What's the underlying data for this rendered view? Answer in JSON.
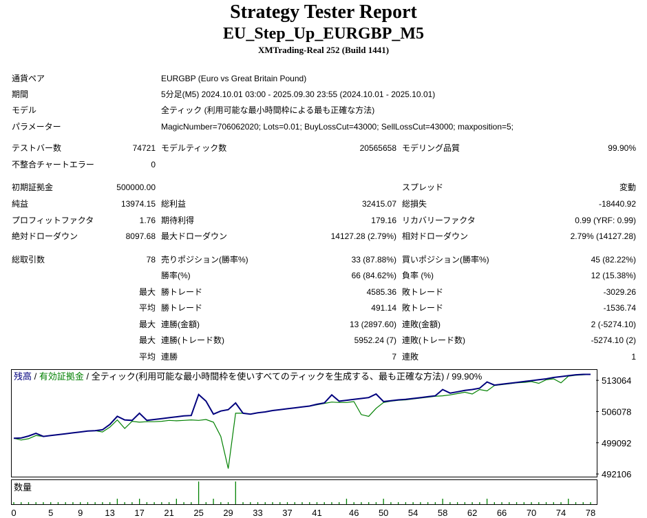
{
  "report": {
    "title": "Strategy Tester Report",
    "subtitle": "EU_Step_Up_EURGBP_M5",
    "build": "XMTrading-Real 252 (Build 1441)"
  },
  "settings": [
    {
      "label": "通貨ペア",
      "value": "EURGBP (Euro vs Great Britain Pound)"
    },
    {
      "label": "期間",
      "value": "5分足(M5) 2024.10.01 03:00 - 2025.09.30 23:55 (2024.10.01 - 2025.10.01)"
    },
    {
      "label": "モデル",
      "value": "全ティック (利用可能な最小時間枠による最も正確な方法)"
    },
    {
      "label": "パラメーター",
      "value": "MagicNumber=706062020; Lots=0.01; BuyLossCut=43000; SellLossCut=43000; maxposition=5;"
    }
  ],
  "stats": {
    "bars_label": "テストバー数",
    "bars_value": "74721",
    "ticks_label": "モデルティック数",
    "ticks_value": "20565658",
    "quality_label": "モデリング品質",
    "quality_value": "99.90%",
    "errors_label": "不整合チャートエラー",
    "errors_value": "0",
    "deposit_label": "初期証拠金",
    "deposit_value": "500000.00",
    "spread_label": "スプレッド",
    "spread_value": "変動",
    "net_label": "純益",
    "net_value": "13974.15",
    "gross_profit_label": "総利益",
    "gross_profit_value": "32415.07",
    "gross_loss_label": "総損失",
    "gross_loss_value": "-18440.92",
    "pf_label": "プロフィットファクタ",
    "pf_value": "1.76",
    "expected_label": "期待利得",
    "expected_value": "179.16",
    "recovery_label": "リカバリーファクタ",
    "recovery_value": "0.99 (YRF: 0.99)",
    "abs_dd_label": "絶対ドローダウン",
    "abs_dd_value": "8097.68",
    "max_dd_label": "最大ドローダウン",
    "max_dd_value": "14127.28 (2.79%)",
    "rel_dd_label": "相対ドローダウン",
    "rel_dd_value": "2.79% (14127.28)",
    "trades_label": "総取引数",
    "trades_value": "78",
    "short_label": "売りポジション(勝率%)",
    "short_value": "33 (87.88%)",
    "long_label": "買いポジション(勝率%)",
    "long_value": "45 (82.22%)",
    "win_pct_label": "勝率(%)",
    "win_pct_value": "66 (84.62%)",
    "loss_pct_label": "負率 (%)",
    "loss_pct_value": "12 (15.38%)",
    "max_prefix": "最大",
    "avg_prefix": "平均",
    "largest_win_label": "勝トレード",
    "largest_win_value": "4585.36",
    "largest_loss_label": "敗トレード",
    "largest_loss_value": "-3029.26",
    "avg_win_label": "勝トレード",
    "avg_win_value": "491.14",
    "avg_loss_label": "敗トレード",
    "avg_loss_value": "-1536.74",
    "cons_win_money_label": "連勝(金額)",
    "cons_win_money_value": "13 (2897.60)",
    "cons_loss_money_label": "連敗(金額)",
    "cons_loss_money_value": "2 (-5274.10)",
    "cons_win_count_label": "連勝(トレード数)",
    "cons_win_count_value": "5952.24 (7)",
    "cons_loss_count_label": "連敗(トレード数)",
    "cons_loss_count_value": "-5274.10 (2)",
    "avg_cons_win_label": "連勝",
    "avg_cons_win_value": "7",
    "avg_cons_loss_label": "連敗",
    "avg_cons_loss_value": "1"
  },
  "chart_legend": {
    "balance": "残高",
    "sep": " / ",
    "equity": "有効証拠金",
    "rest": " / 全ティック(利用可能な最小時間枠を使いすべてのティックを生成する、最も正確な方法) / 99.90%"
  },
  "volume_label": "数量",
  "chart_data": {
    "type": "line",
    "y_ticks": [
      "513064",
      "506078",
      "499092",
      "492106"
    ],
    "y_tick_values": [
      513064,
      506078,
      499092,
      492106
    ],
    "ylim": [
      491500,
      515400
    ],
    "x_ticks": [
      "0",
      "5",
      "9",
      "13",
      "17",
      "21",
      "25",
      "29",
      "33",
      "37",
      "41",
      "46",
      "50",
      "54",
      "58",
      "62",
      "66",
      "70",
      "74",
      "78"
    ],
    "xlim": [
      0,
      78
    ],
    "colors": {
      "balance": "#00007d",
      "equity": "#008000",
      "volume": "#008000"
    },
    "series": [
      {
        "name": "残高",
        "points": [
          [
            0,
            500100
          ],
          [
            1,
            500150
          ],
          [
            2,
            500600
          ],
          [
            3,
            501200
          ],
          [
            4,
            500500
          ],
          [
            5,
            500700
          ],
          [
            6,
            500900
          ],
          [
            7,
            501100
          ],
          [
            8,
            501300
          ],
          [
            9,
            501500
          ],
          [
            10,
            501700
          ],
          [
            11,
            501800
          ],
          [
            12,
            502000
          ],
          [
            13,
            503200
          ],
          [
            14,
            505000
          ],
          [
            15,
            504200
          ],
          [
            16,
            504100
          ],
          [
            17,
            505700
          ],
          [
            18,
            504100
          ],
          [
            19,
            504300
          ],
          [
            20,
            504500
          ],
          [
            21,
            504700
          ],
          [
            22,
            504900
          ],
          [
            23,
            505100
          ],
          [
            24,
            505200
          ],
          [
            25,
            509900
          ],
          [
            26,
            508400
          ],
          [
            27,
            505500
          ],
          [
            28,
            506200
          ],
          [
            29,
            506500
          ],
          [
            30,
            508000
          ],
          [
            31,
            505700
          ],
          [
            32,
            505500
          ],
          [
            33,
            505800
          ],
          [
            34,
            506000
          ],
          [
            35,
            506300
          ],
          [
            36,
            506500
          ],
          [
            37,
            506700
          ],
          [
            38,
            506900
          ],
          [
            39,
            507100
          ],
          [
            40,
            507300
          ],
          [
            41,
            507700
          ],
          [
            42,
            508000
          ],
          [
            43,
            509800
          ],
          [
            44,
            508400
          ],
          [
            45,
            508600
          ],
          [
            46,
            508800
          ],
          [
            47,
            509000
          ],
          [
            48,
            509200
          ],
          [
            49,
            510000
          ],
          [
            50,
            508300
          ],
          [
            51,
            508500
          ],
          [
            52,
            508700
          ],
          [
            53,
            508800
          ],
          [
            54,
            509000
          ],
          [
            55,
            509200
          ],
          [
            56,
            509400
          ],
          [
            57,
            509600
          ],
          [
            58,
            511000
          ],
          [
            59,
            510200
          ],
          [
            60,
            510500
          ],
          [
            61,
            510800
          ],
          [
            62,
            511000
          ],
          [
            63,
            511300
          ],
          [
            64,
            512700
          ],
          [
            65,
            512000
          ],
          [
            66,
            512200
          ],
          [
            67,
            512400
          ],
          [
            68,
            512600
          ],
          [
            69,
            512800
          ],
          [
            70,
            513000
          ],
          [
            71,
            513200
          ],
          [
            72,
            513400
          ],
          [
            73,
            513700
          ],
          [
            74,
            513900
          ],
          [
            75,
            514100
          ],
          [
            76,
            514300
          ],
          [
            77,
            514400
          ],
          [
            78,
            514400
          ]
        ]
      },
      {
        "name": "有効証拠金",
        "points": [
          [
            0,
            500100
          ],
          [
            1,
            499700
          ],
          [
            2,
            500000
          ],
          [
            3,
            500700
          ],
          [
            4,
            500500
          ],
          [
            5,
            500700
          ],
          [
            6,
            500900
          ],
          [
            7,
            501100
          ],
          [
            8,
            501300
          ],
          [
            9,
            501500
          ],
          [
            10,
            501700
          ],
          [
            11,
            501800
          ],
          [
            12,
            501500
          ],
          [
            13,
            502600
          ],
          [
            14,
            504200
          ],
          [
            15,
            502300
          ],
          [
            16,
            503900
          ],
          [
            17,
            503700
          ],
          [
            18,
            503800
          ],
          [
            19,
            503800
          ],
          [
            20,
            503900
          ],
          [
            21,
            504100
          ],
          [
            22,
            504000
          ],
          [
            23,
            504100
          ],
          [
            24,
            504200
          ],
          [
            25,
            504100
          ],
          [
            26,
            504300
          ],
          [
            27,
            503700
          ],
          [
            28,
            500500
          ],
          [
            29,
            493300
          ],
          [
            30,
            505700
          ],
          [
            31,
            505700
          ],
          [
            32,
            505500
          ],
          [
            33,
            505800
          ],
          [
            34,
            506000
          ],
          [
            35,
            506300
          ],
          [
            36,
            506500
          ],
          [
            37,
            506700
          ],
          [
            38,
            506900
          ],
          [
            39,
            507100
          ],
          [
            40,
            507300
          ],
          [
            41,
            507600
          ],
          [
            42,
            507900
          ],
          [
            43,
            508200
          ],
          [
            44,
            508100
          ],
          [
            45,
            508100
          ],
          [
            46,
            508300
          ],
          [
            47,
            505400
          ],
          [
            48,
            505000
          ],
          [
            49,
            506800
          ],
          [
            50,
            508100
          ],
          [
            51,
            508400
          ],
          [
            52,
            508600
          ],
          [
            53,
            508700
          ],
          [
            54,
            508900
          ],
          [
            55,
            509100
          ],
          [
            56,
            509300
          ],
          [
            57,
            509500
          ],
          [
            58,
            509600
          ],
          [
            59,
            509800
          ],
          [
            60,
            510100
          ],
          [
            61,
            510400
          ],
          [
            62,
            510000
          ],
          [
            63,
            511000
          ],
          [
            64,
            510700
          ],
          [
            65,
            511900
          ],
          [
            66,
            512100
          ],
          [
            67,
            512300
          ],
          [
            68,
            512500
          ],
          [
            69,
            512600
          ],
          [
            70,
            512800
          ],
          [
            71,
            512400
          ],
          [
            72,
            513200
          ],
          [
            73,
            513400
          ],
          [
            74,
            512500
          ],
          [
            75,
            514000
          ],
          [
            76,
            514200
          ],
          [
            77,
            514300
          ],
          [
            78,
            514400
          ]
        ]
      }
    ],
    "volume_trade_indices": [
      0,
      1,
      2,
      3,
      4,
      5,
      6,
      7,
      8,
      9,
      10,
      11,
      12,
      13,
      14,
      15,
      16,
      17,
      18,
      19,
      20,
      21,
      22,
      23,
      24,
      25,
      26,
      27,
      28,
      29,
      30,
      31,
      32,
      33,
      34,
      35,
      36,
      37,
      38,
      39,
      40,
      41,
      42,
      43,
      44,
      45,
      46,
      47,
      48,
      49,
      50,
      51,
      52,
      53,
      54,
      55,
      56,
      57,
      58,
      59,
      60,
      61,
      62,
      63,
      64,
      65,
      66,
      67,
      68,
      69,
      70,
      71,
      72,
      73,
      74,
      75,
      76,
      77,
      78
    ],
    "volume_values": [
      1,
      1,
      1,
      1,
      1,
      1,
      1,
      1,
      1,
      1,
      1,
      1,
      1,
      1,
      2,
      1,
      1,
      2,
      1,
      1,
      1,
      1,
      2,
      1,
      1,
      5,
      1,
      2,
      1,
      1,
      5,
      1,
      1,
      1,
      1,
      1,
      1,
      1,
      1,
      1,
      1,
      1,
      1,
      1,
      1,
      2,
      1,
      1,
      1,
      1,
      2,
      1,
      1,
      1,
      1,
      1,
      1,
      1,
      2,
      1,
      1,
      1,
      1,
      1,
      2,
      1,
      1,
      1,
      1,
      1,
      1,
      1,
      1,
      1,
      1,
      2,
      1,
      1,
      1
    ]
  }
}
